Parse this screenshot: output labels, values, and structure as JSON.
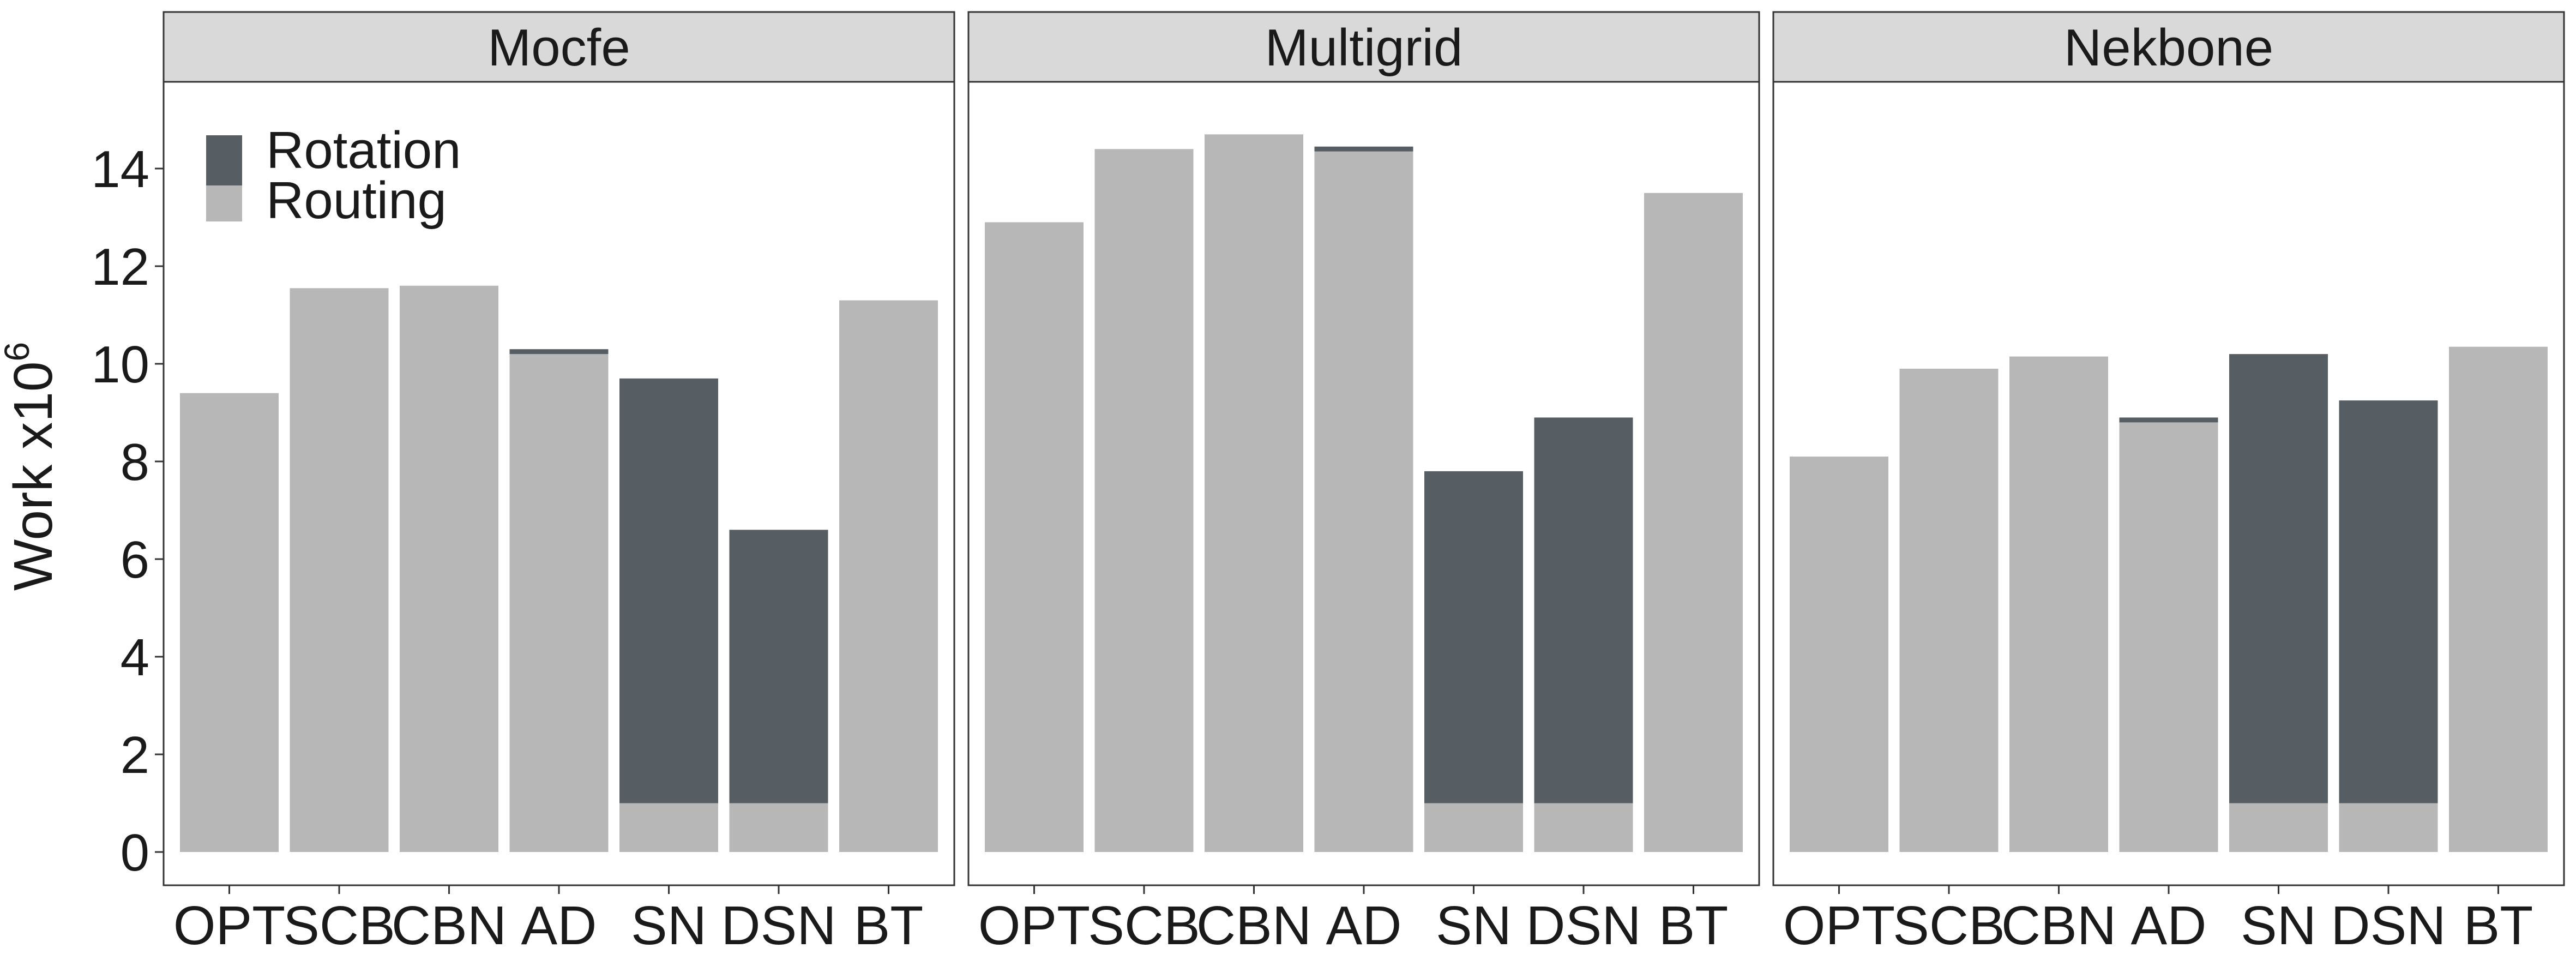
{
  "chart_data": {
    "type": "bar",
    "stacked": true,
    "facets": [
      "Mocfe",
      "Multigrid",
      "Nekbone"
    ],
    "categories": [
      "OPT",
      "SCB",
      "CBN",
      "AD",
      "SN",
      "DSN",
      "BT"
    ],
    "ylabel": "Work x10",
    "ylabel_superscript": "6",
    "xlabel": "",
    "ylim": [
      0,
      15
    ],
    "yticks": [
      0,
      2,
      4,
      6,
      8,
      10,
      12,
      14
    ],
    "legend": {
      "placement": "top-left",
      "entries": [
        {
          "name": "Rotation",
          "color": "#575e63"
        },
        {
          "name": "Routing",
          "color": "#b7b7b7"
        }
      ]
    },
    "series": [
      {
        "name": "Routing",
        "color": "#b7b7b7",
        "values": {
          "Mocfe": [
            9.4,
            11.55,
            11.6,
            10.2,
            1.0,
            1.0,
            11.3
          ],
          "Multigrid": [
            12.9,
            14.4,
            14.7,
            14.35,
            1.0,
            1.0,
            13.5
          ],
          "Nekbone": [
            8.1,
            9.9,
            10.15,
            8.8,
            1.0,
            1.0,
            10.35
          ]
        }
      },
      {
        "name": "Rotation",
        "color": "#575e63",
        "values": {
          "Mocfe": [
            0,
            0,
            0,
            0.1,
            8.7,
            5.6,
            0
          ],
          "Multigrid": [
            0,
            0,
            0,
            0.1,
            6.8,
            7.9,
            0
          ],
          "Nekbone": [
            0,
            0,
            0,
            0.1,
            9.2,
            8.25,
            0
          ]
        }
      }
    ],
    "grid": false,
    "facet_strip_color": "#d9d9d9"
  }
}
